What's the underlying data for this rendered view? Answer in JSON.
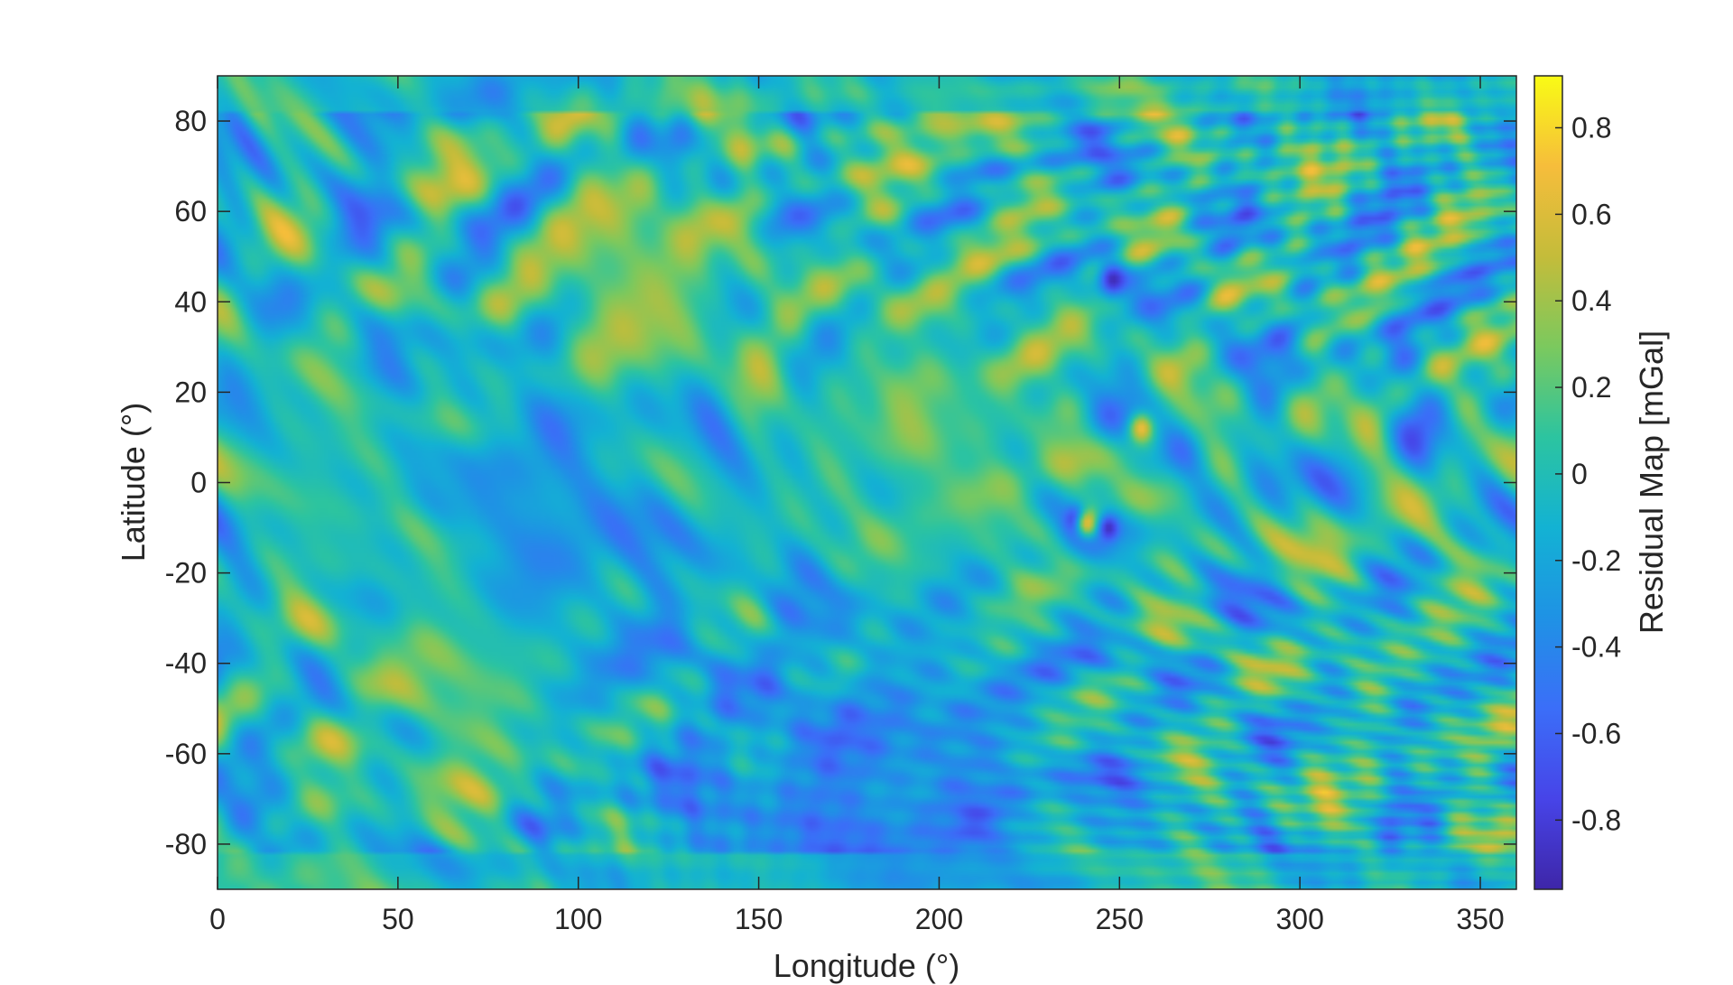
{
  "chart_data": {
    "type": "heatmap",
    "title": "",
    "xlabel": "Longitude (°)",
    "ylabel": "Latitude (°)",
    "xlim": [
      0,
      360
    ],
    "ylim": [
      -90,
      90
    ],
    "x_ticks": [
      0,
      50,
      100,
      150,
      200,
      250,
      300,
      350
    ],
    "y_ticks": [
      -80,
      -60,
      -40,
      -20,
      0,
      20,
      40,
      60,
      80
    ],
    "x_tick_labels": [
      "0",
      "50",
      "100",
      "150",
      "200",
      "250",
      "300",
      "350"
    ],
    "y_tick_labels": [
      "-80",
      "-60",
      "-40",
      "-20",
      "0",
      "20",
      "40",
      "60",
      "80"
    ],
    "colorbar": {
      "label": "Residual Map [mGal]",
      "range": [
        -0.96,
        0.92
      ],
      "ticks": [
        -0.8,
        -0.6,
        -0.4,
        -0.2,
        0,
        0.2,
        0.4,
        0.6,
        0.8
      ],
      "tick_labels": [
        "-0.8",
        "-0.6",
        "-0.4",
        "-0.2",
        "0",
        "0.2",
        "0.4",
        "0.6",
        "0.8"
      ],
      "colormap": "parula",
      "colormap_stops": [
        "#3e26a8",
        "#4744e8",
        "#3b6ef8",
        "#1f92e5",
        "#13b2d3",
        "#2cc4a0",
        "#7bc95e",
        "#c4bc3a",
        "#f6bd3b",
        "#f9fb15"
      ]
    },
    "grid": false,
    "features": [
      {
        "lon": 115,
        "lat": 42,
        "r": 28,
        "value": 0.42
      },
      {
        "lon": 70,
        "lat": -40,
        "r": 30,
        "value": 0.4
      },
      {
        "lon": 90,
        "lat": -10,
        "r": 35,
        "value": -0.35
      },
      {
        "lon": 30,
        "lat": 5,
        "r": 30,
        "value": 0.05
      },
      {
        "lon": 200,
        "lat": 5,
        "r": 40,
        "value": 0.25
      },
      {
        "lon": 248,
        "lat": 45,
        "r": 4,
        "value": -0.9
      },
      {
        "lon": 238,
        "lat": -8,
        "r": 3,
        "value": -0.85
      },
      {
        "lon": 241,
        "lat": -9,
        "r": 3,
        "value": 0.85
      },
      {
        "lon": 247,
        "lat": -10,
        "r": 3,
        "value": -0.85
      },
      {
        "lon": 256,
        "lat": 12,
        "r": 3,
        "value": 0.7
      },
      {
        "lon": 200,
        "lat": 84,
        "r": 12,
        "value": 0.5
      },
      {
        "lon": 180,
        "lat": -86,
        "r": 60,
        "value": -0.45
      }
    ]
  }
}
